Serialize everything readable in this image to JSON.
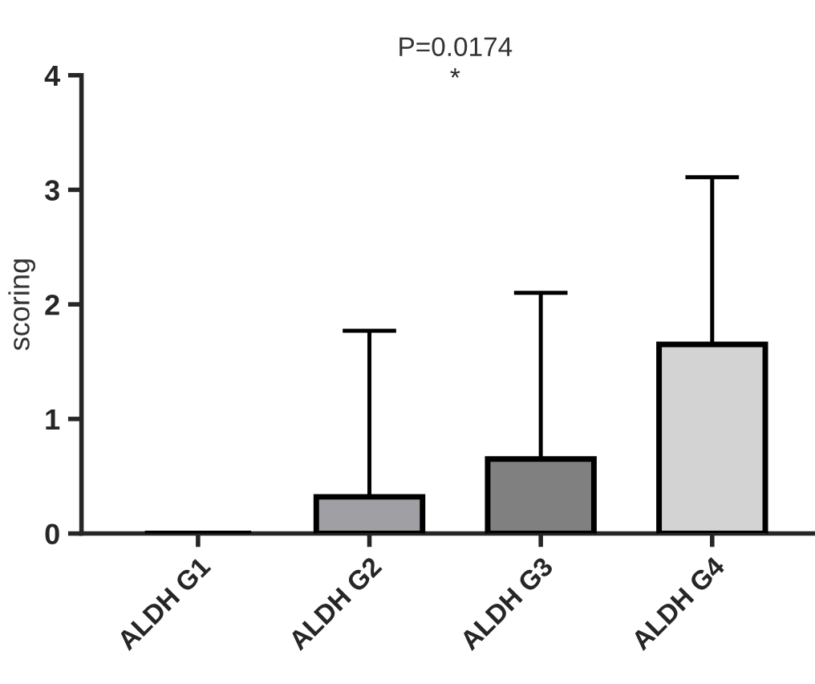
{
  "chart_data": {
    "type": "bar",
    "ylabel": "scoring",
    "categories": [
      "ALDH G1",
      "ALDH G2",
      "ALDH G3",
      "ALDH G4"
    ],
    "values": [
      0,
      0.32,
      0.65,
      1.65
    ],
    "errors": [
      null,
      [
        0.32,
        1.77
      ],
      [
        0.65,
        2.1
      ],
      [
        1.65,
        3.11
      ]
    ],
    "colors": [
      "#000000",
      "#a0a0a4",
      "#808080",
      "#d3d3d3"
    ],
    "ylim": [
      0,
      4
    ],
    "yticks": [
      0,
      1,
      2,
      3,
      4
    ],
    "grid": false,
    "annotations": [
      "P=0.0174",
      "*"
    ]
  }
}
